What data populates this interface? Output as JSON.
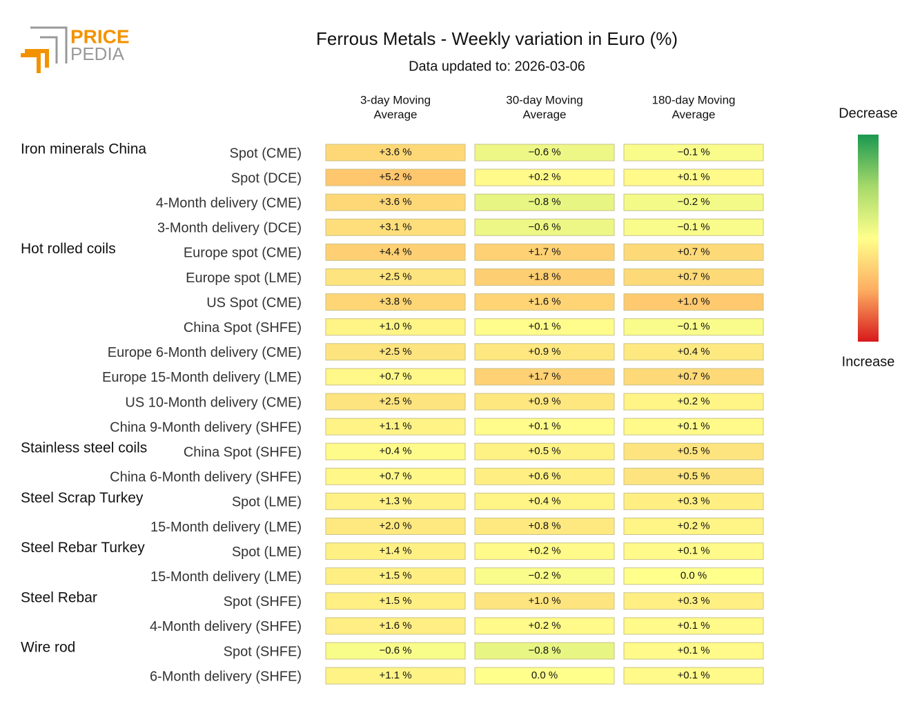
{
  "logo": [
    "PRICE",
    "PEDIA"
  ],
  "chart_data": {
    "type": "heatmap",
    "title": "Ferrous Metals - Weekly variation in Euro (%)",
    "subtitle": "Data updated to: 2026-03-06",
    "columns": [
      {
        "label": [
          "3-day Moving",
          "Average"
        ],
        "clim": [
          -15,
          15
        ]
      },
      {
        "label": [
          "30-day Moving",
          "Average"
        ],
        "clim": [
          -6,
          6
        ]
      },
      {
        "label": [
          "180-day Moving",
          "Average"
        ],
        "clim": [
          -3,
          3
        ]
      }
    ],
    "row_groups": [
      "Iron minerals China",
      null,
      null,
      null,
      "Hot rolled coils",
      null,
      null,
      null,
      null,
      null,
      null,
      null,
      "Stainless steel coils",
      null,
      "Steel Scrap Turkey",
      null,
      "Steel Rebar Turkey",
      null,
      "Steel Rebar",
      null,
      "Wire rod",
      null
    ],
    "rows": [
      "Spot (CME)",
      "Spot (DCE)",
      "4-Month delivery (CME)",
      "3-Month delivery (DCE)",
      "Europe spot (CME)",
      "Europe spot (LME)",
      "US Spot (CME)",
      "China Spot (SHFE)",
      "Europe 6-Month delivery (CME)",
      "Europe 15-Month delivery (LME)",
      "US 10-Month delivery (CME)",
      "China 9-Month delivery (SHFE)",
      "China Spot (SHFE)",
      "China 6-Month delivery (SHFE)",
      "Spot (LME)",
      "15-Month delivery (LME)",
      "Spot (LME)",
      "15-Month delivery (LME)",
      "Spot (SHFE)",
      "4-Month delivery (SHFE)",
      "Spot (SHFE)",
      "6-Month delivery (SHFE)"
    ],
    "values": [
      [
        3.6,
        -0.6,
        -0.1
      ],
      [
        5.2,
        0.2,
        0.1
      ],
      [
        3.6,
        -0.8,
        -0.2
      ],
      [
        3.1,
        -0.6,
        -0.1
      ],
      [
        4.4,
        1.7,
        0.7
      ],
      [
        2.5,
        1.8,
        0.7
      ],
      [
        3.8,
        1.6,
        1.0
      ],
      [
        1.0,
        0.1,
        -0.1
      ],
      [
        2.5,
        0.9,
        0.4
      ],
      [
        0.7,
        1.7,
        0.7
      ],
      [
        2.5,
        0.9,
        0.2
      ],
      [
        1.1,
        0.1,
        0.1
      ],
      [
        0.4,
        0.5,
        0.5
      ],
      [
        0.7,
        0.6,
        0.5
      ],
      [
        1.3,
        0.4,
        0.3
      ],
      [
        2.0,
        0.8,
        0.2
      ],
      [
        1.4,
        0.2,
        0.1
      ],
      [
        1.5,
        -0.2,
        0.0
      ],
      [
        1.5,
        1.0,
        0.3
      ],
      [
        1.6,
        0.2,
        0.1
      ],
      [
        -0.6,
        -0.8,
        0.1
      ],
      [
        1.1,
        0.0,
        0.1
      ]
    ],
    "value_labels": [
      [
        "+3.6 %",
        "−0.6 %",
        "−0.1 %"
      ],
      [
        "+5.2 %",
        "+0.2 %",
        "+0.1 %"
      ],
      [
        "+3.6 %",
        "−0.8 %",
        "−0.2 %"
      ],
      [
        "+3.1 %",
        "−0.6 %",
        "−0.1 %"
      ],
      [
        "+4.4 %",
        "+1.7 %",
        "+0.7 %"
      ],
      [
        "+2.5 %",
        "+1.8 %",
        "+0.7 %"
      ],
      [
        "+3.8 %",
        "+1.6 %",
        "+1.0 %"
      ],
      [
        "+1.0 %",
        "+0.1 %",
        "−0.1 %"
      ],
      [
        "+2.5 %",
        "+0.9 %",
        "+0.4 %"
      ],
      [
        "+0.7 %",
        "+1.7 %",
        "+0.7 %"
      ],
      [
        "+2.5 %",
        "+0.9 %",
        "+0.2 %"
      ],
      [
        "+1.1 %",
        "+0.1 %",
        "+0.1 %"
      ],
      [
        "+0.4 %",
        "+0.5 %",
        "+0.5 %"
      ],
      [
        "+0.7 %",
        "+0.6 %",
        "+0.5 %"
      ],
      [
        "+1.3 %",
        "+0.4 %",
        "+0.3 %"
      ],
      [
        "+2.0 %",
        "+0.8 %",
        "+0.2 %"
      ],
      [
        "+1.4 %",
        "+0.2 %",
        "+0.1 %"
      ],
      [
        "+1.5 %",
        "−0.2 %",
        "0.0 %"
      ],
      [
        "+1.5 %",
        "+1.0 %",
        "+0.3 %"
      ],
      [
        "+1.6 %",
        "+0.2 %",
        "+0.1 %"
      ],
      [
        "−0.6 %",
        "−0.8 %",
        "+0.1 %"
      ],
      [
        "+1.1 %",
        "0.0 %",
        "+0.1 %"
      ]
    ],
    "colorbar_labels": [
      "Decrease",
      "Increase"
    ]
  }
}
